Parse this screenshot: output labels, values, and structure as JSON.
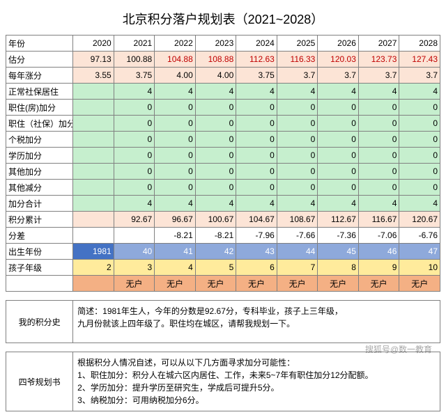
{
  "title": "北京积分落户规划表（2021~2028）",
  "colors": {
    "peach": "#fce4d6",
    "green": "#c6efce",
    "blue": "#4472c4",
    "blue2": "#8ea9db",
    "yellow": "#ffeb9c",
    "orange": "#f4b084",
    "white": "#ffffff",
    "darkblue_text": "#1f4e78"
  },
  "headers": [
    "年份",
    "2020",
    "2021",
    "2022",
    "2023",
    "2024",
    "2025",
    "2026",
    "2027",
    "2028"
  ],
  "rows": [
    {
      "label": "估分",
      "bg": "peach",
      "cells": [
        "97.13",
        "100.88",
        "104.88",
        "108.88",
        "112.63",
        "116.33",
        "120.03",
        "123.73",
        "127.43"
      ],
      "redFrom": 2
    },
    {
      "label": "每年涨分",
      "bg": "peach",
      "cells": [
        "3.55",
        "3.75",
        "4.00",
        "4.00",
        "3.75",
        "3.7",
        "3.7",
        "3.7",
        "3.7"
      ]
    },
    {
      "label": "正常社保居住",
      "bg": "green",
      "cells": [
        "",
        "4",
        "4",
        "4",
        "4",
        "4",
        "4",
        "4",
        "4"
      ]
    },
    {
      "label": "职住(房)加分",
      "bg": "green",
      "cells": [
        "",
        "0",
        "0",
        "0",
        "0",
        "0",
        "0",
        "0",
        "0"
      ]
    },
    {
      "label": "职住（社保）加分",
      "bg": "green",
      "cells": [
        "",
        "0",
        "0",
        "0",
        "0",
        "0",
        "0",
        "0",
        "0"
      ]
    },
    {
      "label": "个税加分",
      "bg": "green",
      "cells": [
        "",
        "0",
        "0",
        "0",
        "0",
        "0",
        "0",
        "0",
        "0"
      ]
    },
    {
      "label": "学历加分",
      "bg": "green",
      "cells": [
        "",
        "0",
        "0",
        "0",
        "0",
        "0",
        "0",
        "0",
        "0"
      ]
    },
    {
      "label": "其他加分",
      "bg": "green",
      "cells": [
        "",
        "0",
        "0",
        "0",
        "0",
        "0",
        "0",
        "0",
        "0"
      ]
    },
    {
      "label": "其他减分",
      "bg": "green",
      "cells": [
        "",
        "0",
        "0",
        "0",
        "0",
        "0",
        "0",
        "0",
        "0"
      ]
    },
    {
      "label": "加分合计",
      "bg": "green",
      "cells": [
        "",
        "4",
        "4",
        "4",
        "4",
        "4",
        "4",
        "4",
        "4"
      ]
    },
    {
      "label": "积分累计",
      "bg": "peach",
      "cells": [
        "",
        "92.67",
        "96.67",
        "100.67",
        "104.67",
        "108.67",
        "112.67",
        "116.67",
        "120.67"
      ]
    },
    {
      "label": "分差",
      "bg": "white",
      "cells": [
        "",
        "",
        "-8.21",
        "-8.21",
        "-7.96",
        "-7.66",
        "-7.36",
        "-7.06",
        "-6.76"
      ]
    },
    {
      "label": "出生年份",
      "bg": "blue",
      "first": "1981",
      "firstBg": "blue",
      "cells": [
        "1981",
        "40",
        "41",
        "42",
        "43",
        "44",
        "45",
        "46",
        "47"
      ],
      "restBg": "blue2",
      "textWhite": true
    },
    {
      "label": "孩子年级",
      "bg": "yellow",
      "cells": [
        "2",
        "3",
        "4",
        "5",
        "6",
        "7",
        "8",
        "9",
        "10"
      ]
    },
    {
      "label": "",
      "bg": "orange",
      "center": true,
      "cells": [
        "",
        "无户",
        "无户",
        "无户",
        "无户",
        "无户",
        "无户",
        "无户",
        "无户"
      ]
    }
  ],
  "note1": {
    "label": "我的积分史",
    "text": "简述：1981年生人，今年的分数是92.67分，专科毕业，孩子上三年级，\n九月份就该上四年级了。职住均在城区，请帮我规划一下。"
  },
  "note2": {
    "label": "四爷规划书",
    "text": "根据积分人情况自述，可以从以下几方面寻求加分可能性：\n1、职住加分：积分人在城六区内居住、工作，未来5~7年有职住加分12分配额。\n2、学历加分：提升学历至研究生，学成后可提升5分。\n3、纳税加分：可用纳税加分6分。"
  },
  "watermark": "搜狐号@数一教育"
}
